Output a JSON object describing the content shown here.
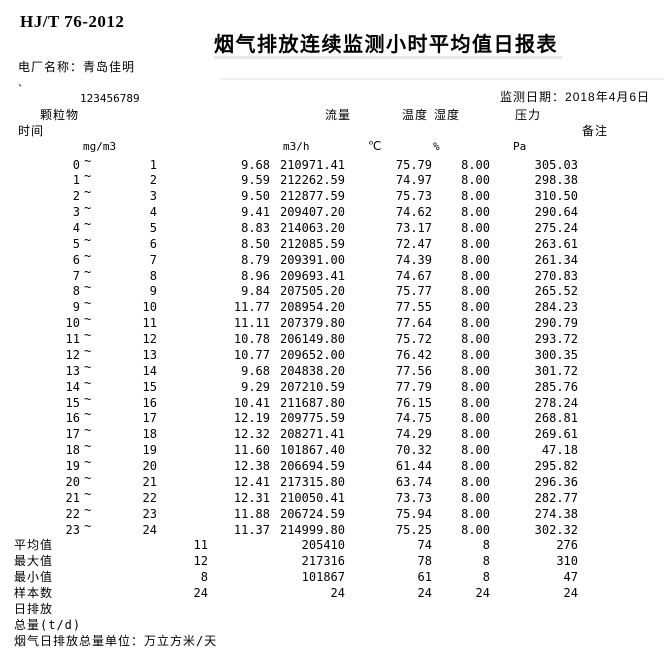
{
  "page": {
    "standard_code": "HJ/T 76-2012",
    "title": "烟气排放连续监测小时平均值日报表",
    "plant_name_label": "电厂名称：",
    "plant_name": "青岛佳明",
    "stray_mark": "`",
    "serial_number": "123456789",
    "monitor_date_label": "监测日期：",
    "monitor_date": "2018年4月6日"
  },
  "table": {
    "col_particulate": "颗粒物",
    "col_time": "时间",
    "col_flow": "流量",
    "col_temperature": "温度",
    "col_humidity": "湿度",
    "col_pressure": "压力",
    "col_remark": "备注",
    "unit_particulate": "mg/m3",
    "unit_flow": "m3/h",
    "unit_temperature": "℃",
    "unit_humidity": "%",
    "unit_pressure": "Pa",
    "tilde": "~",
    "rows": [
      {
        "start": "0",
        "end": "1",
        "pm": "9.68",
        "flow": "210971.41",
        "temp": "75.79",
        "hum": "8.00",
        "press": "305.03"
      },
      {
        "start": "1",
        "end": "2",
        "pm": "9.59",
        "flow": "212262.59",
        "temp": "74.97",
        "hum": "8.00",
        "press": "298.38"
      },
      {
        "start": "2",
        "end": "3",
        "pm": "9.50",
        "flow": "212877.59",
        "temp": "75.73",
        "hum": "8.00",
        "press": "310.50"
      },
      {
        "start": "3",
        "end": "4",
        "pm": "9.41",
        "flow": "209407.20",
        "temp": "74.62",
        "hum": "8.00",
        "press": "290.64"
      },
      {
        "start": "4",
        "end": "5",
        "pm": "8.83",
        "flow": "214063.20",
        "temp": "73.17",
        "hum": "8.00",
        "press": "275.24"
      },
      {
        "start": "5",
        "end": "6",
        "pm": "8.50",
        "flow": "212085.59",
        "temp": "72.47",
        "hum": "8.00",
        "press": "263.61"
      },
      {
        "start": "6",
        "end": "7",
        "pm": "8.79",
        "flow": "209391.00",
        "temp": "74.39",
        "hum": "8.00",
        "press": "261.34"
      },
      {
        "start": "7",
        "end": "8",
        "pm": "8.96",
        "flow": "209693.41",
        "temp": "74.67",
        "hum": "8.00",
        "press": "270.83"
      },
      {
        "start": "8",
        "end": "9",
        "pm": "9.84",
        "flow": "207505.20",
        "temp": "75.77",
        "hum": "8.00",
        "press": "265.52"
      },
      {
        "start": "9",
        "end": "10",
        "pm": "11.77",
        "flow": "208954.20",
        "temp": "77.55",
        "hum": "8.00",
        "press": "284.23"
      },
      {
        "start": "10",
        "end": "11",
        "pm": "11.11",
        "flow": "207379.80",
        "temp": "77.64",
        "hum": "8.00",
        "press": "290.79"
      },
      {
        "start": "11",
        "end": "12",
        "pm": "10.78",
        "flow": "206149.80",
        "temp": "75.72",
        "hum": "8.00",
        "press": "293.72"
      },
      {
        "start": "12",
        "end": "13",
        "pm": "10.77",
        "flow": "209652.00",
        "temp": "76.42",
        "hum": "8.00",
        "press": "300.35"
      },
      {
        "start": "13",
        "end": "14",
        "pm": "9.68",
        "flow": "204838.20",
        "temp": "77.56",
        "hum": "8.00",
        "press": "301.72"
      },
      {
        "start": "14",
        "end": "15",
        "pm": "9.29",
        "flow": "207210.59",
        "temp": "77.79",
        "hum": "8.00",
        "press": "285.76"
      },
      {
        "start": "15",
        "end": "16",
        "pm": "10.41",
        "flow": "211687.80",
        "temp": "76.15",
        "hum": "8.00",
        "press": "278.24"
      },
      {
        "start": "16",
        "end": "17",
        "pm": "12.19",
        "flow": "209775.59",
        "temp": "74.75",
        "hum": "8.00",
        "press": "268.81"
      },
      {
        "start": "17",
        "end": "18",
        "pm": "12.32",
        "flow": "208271.41",
        "temp": "74.29",
        "hum": "8.00",
        "press": "269.61"
      },
      {
        "start": "18",
        "end": "19",
        "pm": "11.60",
        "flow": "101867.40",
        "temp": "70.32",
        "hum": "8.00",
        "press": "47.18"
      },
      {
        "start": "19",
        "end": "20",
        "pm": "12.38",
        "flow": "206694.59",
        "temp": "61.44",
        "hum": "8.00",
        "press": "295.82"
      },
      {
        "start": "20",
        "end": "21",
        "pm": "12.41",
        "flow": "217315.80",
        "temp": "63.74",
        "hum": "8.00",
        "press": "296.36"
      },
      {
        "start": "21",
        "end": "22",
        "pm": "12.31",
        "flow": "210050.41",
        "temp": "73.73",
        "hum": "8.00",
        "press": "282.77"
      },
      {
        "start": "22",
        "end": "23",
        "pm": "11.88",
        "flow": "206724.59",
        "temp": "75.94",
        "hum": "8.00",
        "press": "274.38"
      },
      {
        "start": "23",
        "end": "24",
        "pm": "11.37",
        "flow": "214999.80",
        "temp": "75.25",
        "hum": "8.00",
        "press": "302.32"
      }
    ],
    "summary_rows": [
      {
        "label": "平均值",
        "pm": "11",
        "flow": "205410",
        "temp": "74",
        "hum": "8",
        "press": "276"
      },
      {
        "label": "最大值",
        "pm": "12",
        "flow": "217316",
        "temp": "78",
        "hum": "8",
        "press": "310"
      },
      {
        "label": "最小值",
        "pm": "8",
        "flow": "101867",
        "temp": "61",
        "hum": "8",
        "press": "47"
      },
      {
        "label": "样本数",
        "pm": "24",
        "flow": "24",
        "temp": "24",
        "hum": "24",
        "press": "24"
      }
    ],
    "footer_lines": [
      "日排放",
      "总量(t/d)",
      "烟气日排放总量单位：万立方米/天"
    ]
  }
}
